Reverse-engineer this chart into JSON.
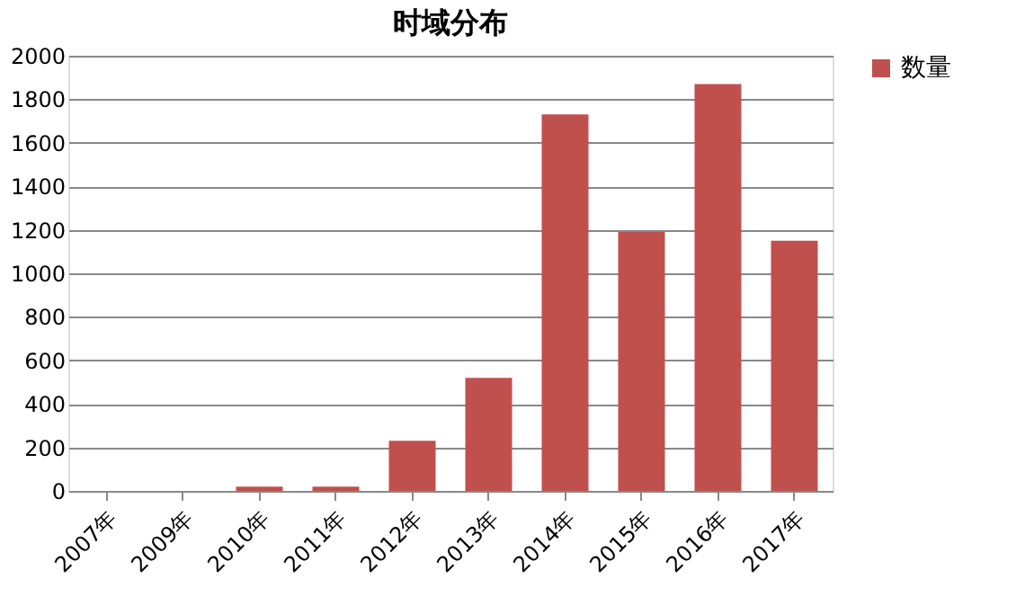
{
  "chart_data": {
    "type": "bar",
    "title": "时域分布",
    "categories": [
      "2007年",
      "2009年",
      "2010年",
      "2011年",
      "2012年",
      "2013年",
      "2014年",
      "2015年",
      "2016年",
      "2017年"
    ],
    "series": [
      {
        "name": "数量",
        "color": "#c0504d",
        "values": [
          0,
          0,
          20,
          20,
          230,
          520,
          1730,
          1190,
          1870,
          1150
        ]
      }
    ],
    "ylim": [
      0,
      2000
    ],
    "yticks": [
      0,
      200,
      400,
      600,
      800,
      1000,
      1200,
      1400,
      1600,
      1800,
      2000
    ],
    "grid": "y",
    "legend": "right"
  }
}
